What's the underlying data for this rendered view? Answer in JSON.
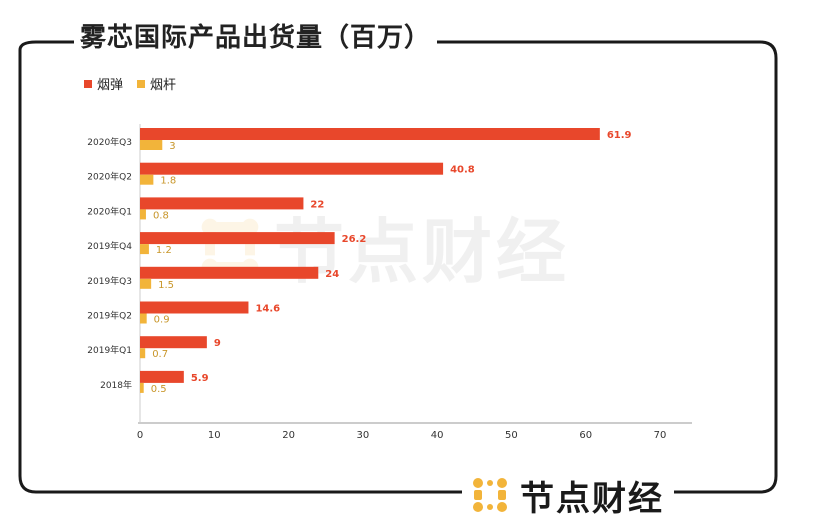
{
  "title": "雾芯国际产品出货量（百万）",
  "brand": {
    "name": "节点财经"
  },
  "colors": {
    "primary": "#E8472B",
    "secondary": "#F2B43A",
    "frame": "#1a1a1a",
    "axis": "#999999"
  },
  "chart_data": {
    "type": "bar",
    "orientation": "horizontal",
    "title": "雾芯国际产品出货量（百万）",
    "categories": [
      "2020年Q3",
      "2020年Q2",
      "2020年Q1",
      "2019年Q4",
      "2019年Q3",
      "2019年Q2",
      "2019年Q1",
      "2018年"
    ],
    "series": [
      {
        "name": "烟弹",
        "color": "#E8472B",
        "values": [
          61.9,
          40.8,
          22,
          26.2,
          24,
          14.6,
          9,
          5.9
        ]
      },
      {
        "name": "烟杆",
        "color": "#F2B43A",
        "values": [
          3,
          1.8,
          0.8,
          1.2,
          1.5,
          0.9,
          0.7,
          0.5
        ]
      }
    ],
    "xlim": [
      0,
      70
    ],
    "xticks": [
      0,
      10,
      20,
      30,
      40,
      50,
      60,
      70
    ],
    "legend": "top-left",
    "grid": false
  }
}
